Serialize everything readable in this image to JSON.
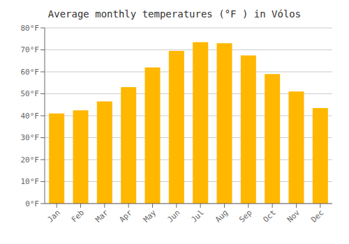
{
  "chart_data": {
    "type": "bar",
    "title": "Average monthly temperatures (°F ) in Vólos",
    "categories": [
      "Jan",
      "Feb",
      "Mar",
      "Apr",
      "May",
      "Jun",
      "Jul",
      "Aug",
      "Sep",
      "Oct",
      "Nov",
      "Dec"
    ],
    "values": [
      41,
      42.5,
      46.5,
      53,
      62,
      69.5,
      73.5,
      73,
      67.5,
      59,
      51,
      43.5
    ],
    "color": "#FFB700",
    "ylim": [
      0,
      80
    ],
    "yticks": [
      {
        "value": 0,
        "label": "0°F"
      },
      {
        "value": 10,
        "label": "10°F"
      },
      {
        "value": 20,
        "label": "20°F"
      },
      {
        "value": 30,
        "label": "30°F"
      },
      {
        "value": 40,
        "label": "40°F"
      },
      {
        "value": 50,
        "label": "50°F"
      },
      {
        "value": 60,
        "label": "60°F"
      },
      {
        "value": 70,
        "label": "70°F"
      },
      {
        "value": 80,
        "label": "80°F"
      }
    ],
    "grid": true
  }
}
